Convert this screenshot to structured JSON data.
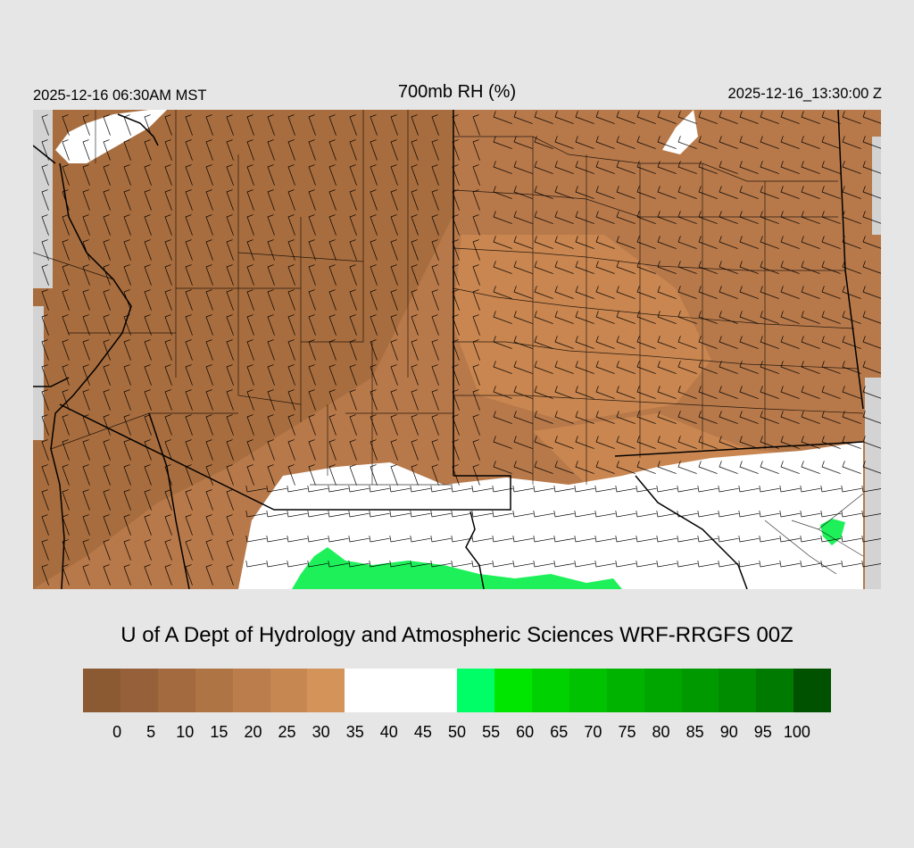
{
  "header": {
    "valid_time_local": "2025-12-16 06:30AM MST",
    "field_title": "700mb RH (%)",
    "valid_time_utc": "2025-12-16_13:30:00 Z"
  },
  "credit": "U of A Dept of Hydrology and Atmospheric Sciences WRF-RRGFS 00Z",
  "legend": {
    "ticks": [
      "0",
      "5",
      "10",
      "15",
      "20",
      "25",
      "30",
      "35",
      "40",
      "45",
      "50",
      "55",
      "60",
      "65",
      "70",
      "75",
      "80",
      "85",
      "90",
      "95",
      "100"
    ],
    "colors": [
      "#8b5a32",
      "#96613a",
      "#a26a3e",
      "#ae7444",
      "#bb7d4b",
      "#c78750",
      "#d49358",
      "#ffffff",
      "#ffffff",
      "#ffffff",
      "#00ff66",
      "#00e600",
      "#00d100",
      "#00c200",
      "#00b300",
      "#00a600",
      "#009900",
      "#008c00",
      "#007a00",
      "#006b00",
      "#005200"
    ]
  },
  "map": {
    "fill_colors": {
      "dry_dark": "#a86d3e",
      "dry_mid": "#b8794a",
      "dry_light": "#c98650",
      "moist": "#ffffff",
      "wet": "#1ef05a",
      "no_data": "#d3d3d3"
    }
  }
}
